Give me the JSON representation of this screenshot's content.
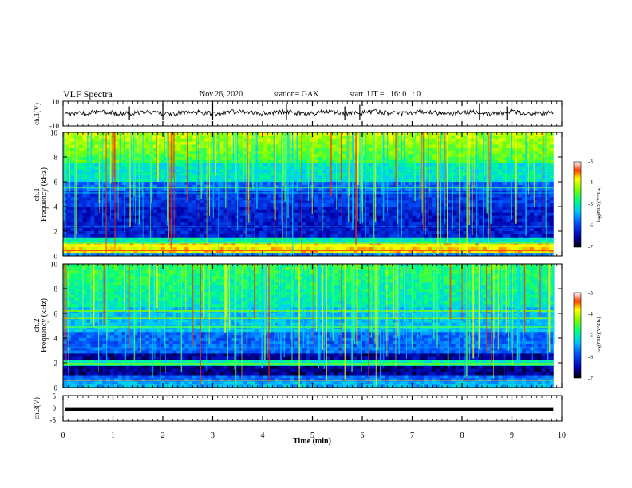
{
  "header": {
    "title": "VLF Spectra",
    "date": "Nov.26, 2020",
    "station": "station= GAK",
    "start": "start  UT =   16: 0   : 0"
  },
  "chart_data": [
    {
      "id": "ch1-waveform",
      "type": "line",
      "ylabel": "ch.1(V)",
      "ylim": [
        -10,
        10
      ],
      "yticks": [
        "10",
        "-10"
      ],
      "xlim": [
        0,
        10
      ],
      "description_values": "noisy waveform centered near 0 V with spikes"
    },
    {
      "id": "ch1-spectrogram",
      "type": "heatmap",
      "ylabel": "ch.1\nFrequency (kHz)",
      "ylabel_lines": [
        "ch.1",
        "Frequency (kHz)"
      ],
      "ylim": [
        0,
        10
      ],
      "yticks": [
        "0",
        "2",
        "4",
        "6",
        "8",
        "10"
      ],
      "xlim": [
        0,
        10
      ],
      "colorbar": {
        "label": "log(PSD)(V²/Hz)",
        "range": [
          -7,
          -3
        ],
        "ticks": [
          "-3",
          "-4",
          "-5",
          "-6",
          "-7"
        ]
      }
    },
    {
      "id": "ch2-spectrogram",
      "type": "heatmap",
      "ylabel": "ch.2\nFrequency (kHz)",
      "ylabel_lines": [
        "ch.2",
        "Frequency (kHz)"
      ],
      "ylim": [
        0,
        10
      ],
      "yticks": [
        "0",
        "2",
        "4",
        "6",
        "8",
        "10"
      ],
      "xlim": [
        0,
        10
      ],
      "colorbar": {
        "label": "log(PSD)(V²/Hz)",
        "range": [
          -7,
          -3
        ],
        "ticks": [
          "-3",
          "-4",
          "-5",
          "-6",
          "-7"
        ]
      }
    },
    {
      "id": "ch3-waveform",
      "type": "line",
      "ylabel": "ch.3(V)",
      "ylim": [
        -5,
        5
      ],
      "yticks": [
        "5",
        "0",
        "-5"
      ],
      "xlim": [
        0,
        10
      ],
      "constant_value": -0.5
    }
  ],
  "xaxis": {
    "label": "Time  (min)",
    "ticks": [
      "0",
      "1",
      "2",
      "3",
      "4",
      "5",
      "6",
      "7",
      "8",
      "9",
      "10"
    ],
    "data_end": 9.83
  }
}
